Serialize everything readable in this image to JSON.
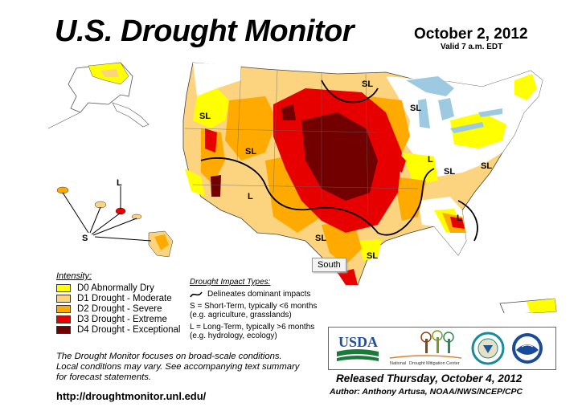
{
  "title": "U.S. Drought Monitor",
  "date": "October 2, 2012",
  "valid": "Valid 7 a.m. EDT",
  "tooltip": "South",
  "legend": {
    "title": "Intensity:",
    "items": [
      {
        "label": "D0 Abnormally Dry",
        "color": "#ffff00"
      },
      {
        "label": "D1 Drought - Moderate",
        "color": "#fcd37f"
      },
      {
        "label": "D2 Drought - Severe",
        "color": "#ffaa00"
      },
      {
        "label": "D3 Drought - Extreme",
        "color": "#e60000"
      },
      {
        "label": "D4 Drought - Exceptional",
        "color": "#730000"
      }
    ]
  },
  "impact": {
    "title": "Drought Impact Types:",
    "delineates": "Delineates dominant impacts",
    "short_1": "S = Short-Term, typically <6 months",
    "short_2": "(e.g. agriculture, grasslands)",
    "long_1": "L = Long-Term, typically >6 months",
    "long_2": "(e.g. hydrology, ecology)"
  },
  "note": {
    "line1": "The Drought Monitor focuses on broad-scale conditions.",
    "line2": "Local conditions may vary. See accompanying text summary",
    "line3": "for forecast statements."
  },
  "url": "http://droughtmonitor.unl.edu/",
  "released": "Released Thursday, October 4, 2012",
  "author": "Author: Anthony Artusa, NOAA/NWS/NCEP/CPC",
  "logos": {
    "usda": "USDA",
    "ndmc_1": "National",
    "ndmc_2": "Drought Mitigation Center"
  },
  "map_labels": {
    "sl": "SL",
    "l": "L",
    "s": "S"
  }
}
